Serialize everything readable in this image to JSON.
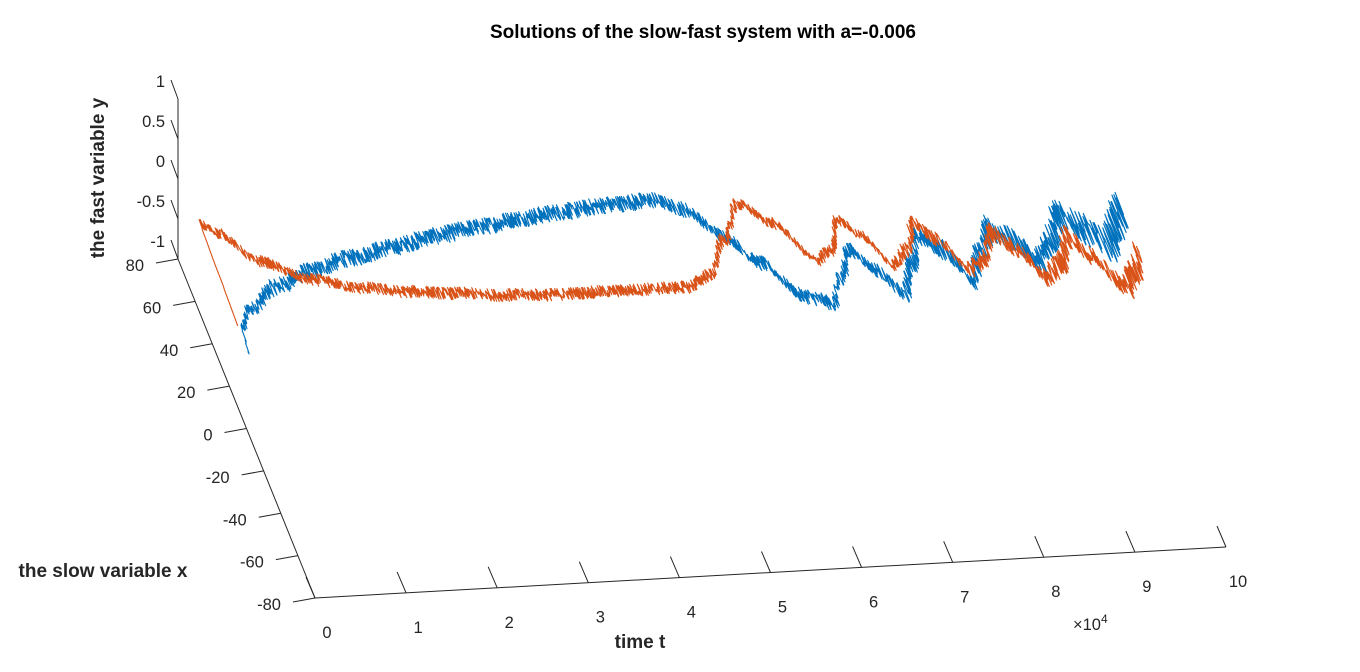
{
  "chart_data": {
    "type": "line",
    "title": "Solutions of the slow-fast system with a=-0.006",
    "xlabel": "time t",
    "ylabel": "the slow variable x",
    "zlabel": "the fast variable y",
    "x_exponent_label": "×10",
    "x_exponent_power": "4",
    "x_ticks": [
      "0",
      "1",
      "2",
      "3",
      "4",
      "5",
      "6",
      "7",
      "8",
      "9",
      "10"
    ],
    "y_ticks": [
      "-80",
      "-60",
      "-40",
      "-20",
      "0",
      "20",
      "40",
      "60",
      "80"
    ],
    "z_ticks": [
      "-1",
      "-0.5",
      "0",
      "0.5",
      "1"
    ],
    "xlim": [
      0,
      10
    ],
    "ylim": [
      -80,
      80
    ],
    "zlim": [
      -1,
      1
    ],
    "grid": false,
    "series": [
      {
        "color": "#0072BD",
        "points": [
          [
            0,
            -2
          ],
          [
            0.05,
            10
          ],
          [
            0.2,
            18
          ],
          [
            0.6,
            28
          ],
          [
            1,
            34
          ],
          [
            1.5,
            39
          ],
          [
            2,
            43
          ],
          [
            2.5,
            47
          ],
          [
            3,
            50
          ],
          [
            3.5,
            53
          ],
          [
            4,
            55
          ],
          [
            4.5,
            57
          ],
          [
            5,
            58
          ],
          [
            5.3,
            53
          ],
          [
            5.6,
            40
          ],
          [
            5.9,
            26
          ],
          [
            6.2,
            10
          ],
          [
            6.5,
            6
          ],
          [
            6.7,
            18
          ],
          [
            6.9,
            30
          ],
          [
            7.1,
            20
          ],
          [
            7.3,
            8
          ],
          [
            7.5,
            22
          ],
          [
            7.7,
            34
          ],
          [
            7.9,
            28
          ],
          [
            8.1,
            14
          ],
          [
            8.3,
            26
          ],
          [
            8.5,
            36
          ],
          [
            8.7,
            30
          ],
          [
            8.9,
            20
          ],
          [
            9.1,
            30
          ],
          [
            9.3,
            40
          ],
          [
            9.5,
            34
          ],
          [
            9.7,
            26
          ],
          [
            9.9,
            36
          ],
          [
            10,
            42
          ]
        ],
        "amp": [
          2,
          3,
          3,
          4,
          4,
          4,
          4,
          4,
          4,
          4,
          4,
          4,
          4,
          4,
          4,
          4,
          4,
          4,
          4,
          4,
          4,
          5,
          5,
          5,
          6,
          6,
          6,
          7,
          7,
          7,
          8,
          8,
          9,
          9,
          10,
          10
        ]
      },
      {
        "color": "#D95319",
        "points": [
          [
            0,
            12
          ],
          [
            0.05,
            58
          ],
          [
            0.2,
            54
          ],
          [
            0.5,
            40
          ],
          [
            1,
            30
          ],
          [
            1.5,
            25
          ],
          [
            2,
            22
          ],
          [
            2.5,
            20
          ],
          [
            3,
            18
          ],
          [
            3.5,
            17
          ],
          [
            4,
            17
          ],
          [
            4.5,
            17
          ],
          [
            5,
            17
          ],
          [
            5.3,
            22
          ],
          [
            5.6,
            38
          ],
          [
            5.9,
            54
          ],
          [
            6.2,
            44
          ],
          [
            6.5,
            26
          ],
          [
            6.7,
            30
          ],
          [
            6.9,
            44
          ],
          [
            7.1,
            36
          ],
          [
            7.3,
            22
          ],
          [
            7.5,
            28
          ],
          [
            7.7,
            40
          ],
          [
            7.9,
            32
          ],
          [
            8.1,
            18
          ],
          [
            8.3,
            22
          ],
          [
            8.5,
            34
          ],
          [
            8.7,
            26
          ],
          [
            8.9,
            12
          ],
          [
            9.1,
            18
          ],
          [
            9.3,
            30
          ],
          [
            9.5,
            20
          ],
          [
            9.7,
            6
          ],
          [
            9.9,
            14
          ],
          [
            10,
            22
          ]
        ],
        "amp": [
          2,
          3,
          3,
          3,
          3,
          3,
          3,
          3,
          3,
          3,
          3,
          3,
          3,
          3,
          3,
          3,
          3,
          3,
          3,
          3,
          3,
          3,
          4,
          4,
          4,
          4,
          4,
          5,
          5,
          5,
          6,
          6,
          6,
          7,
          7,
          8
        ]
      }
    ]
  }
}
